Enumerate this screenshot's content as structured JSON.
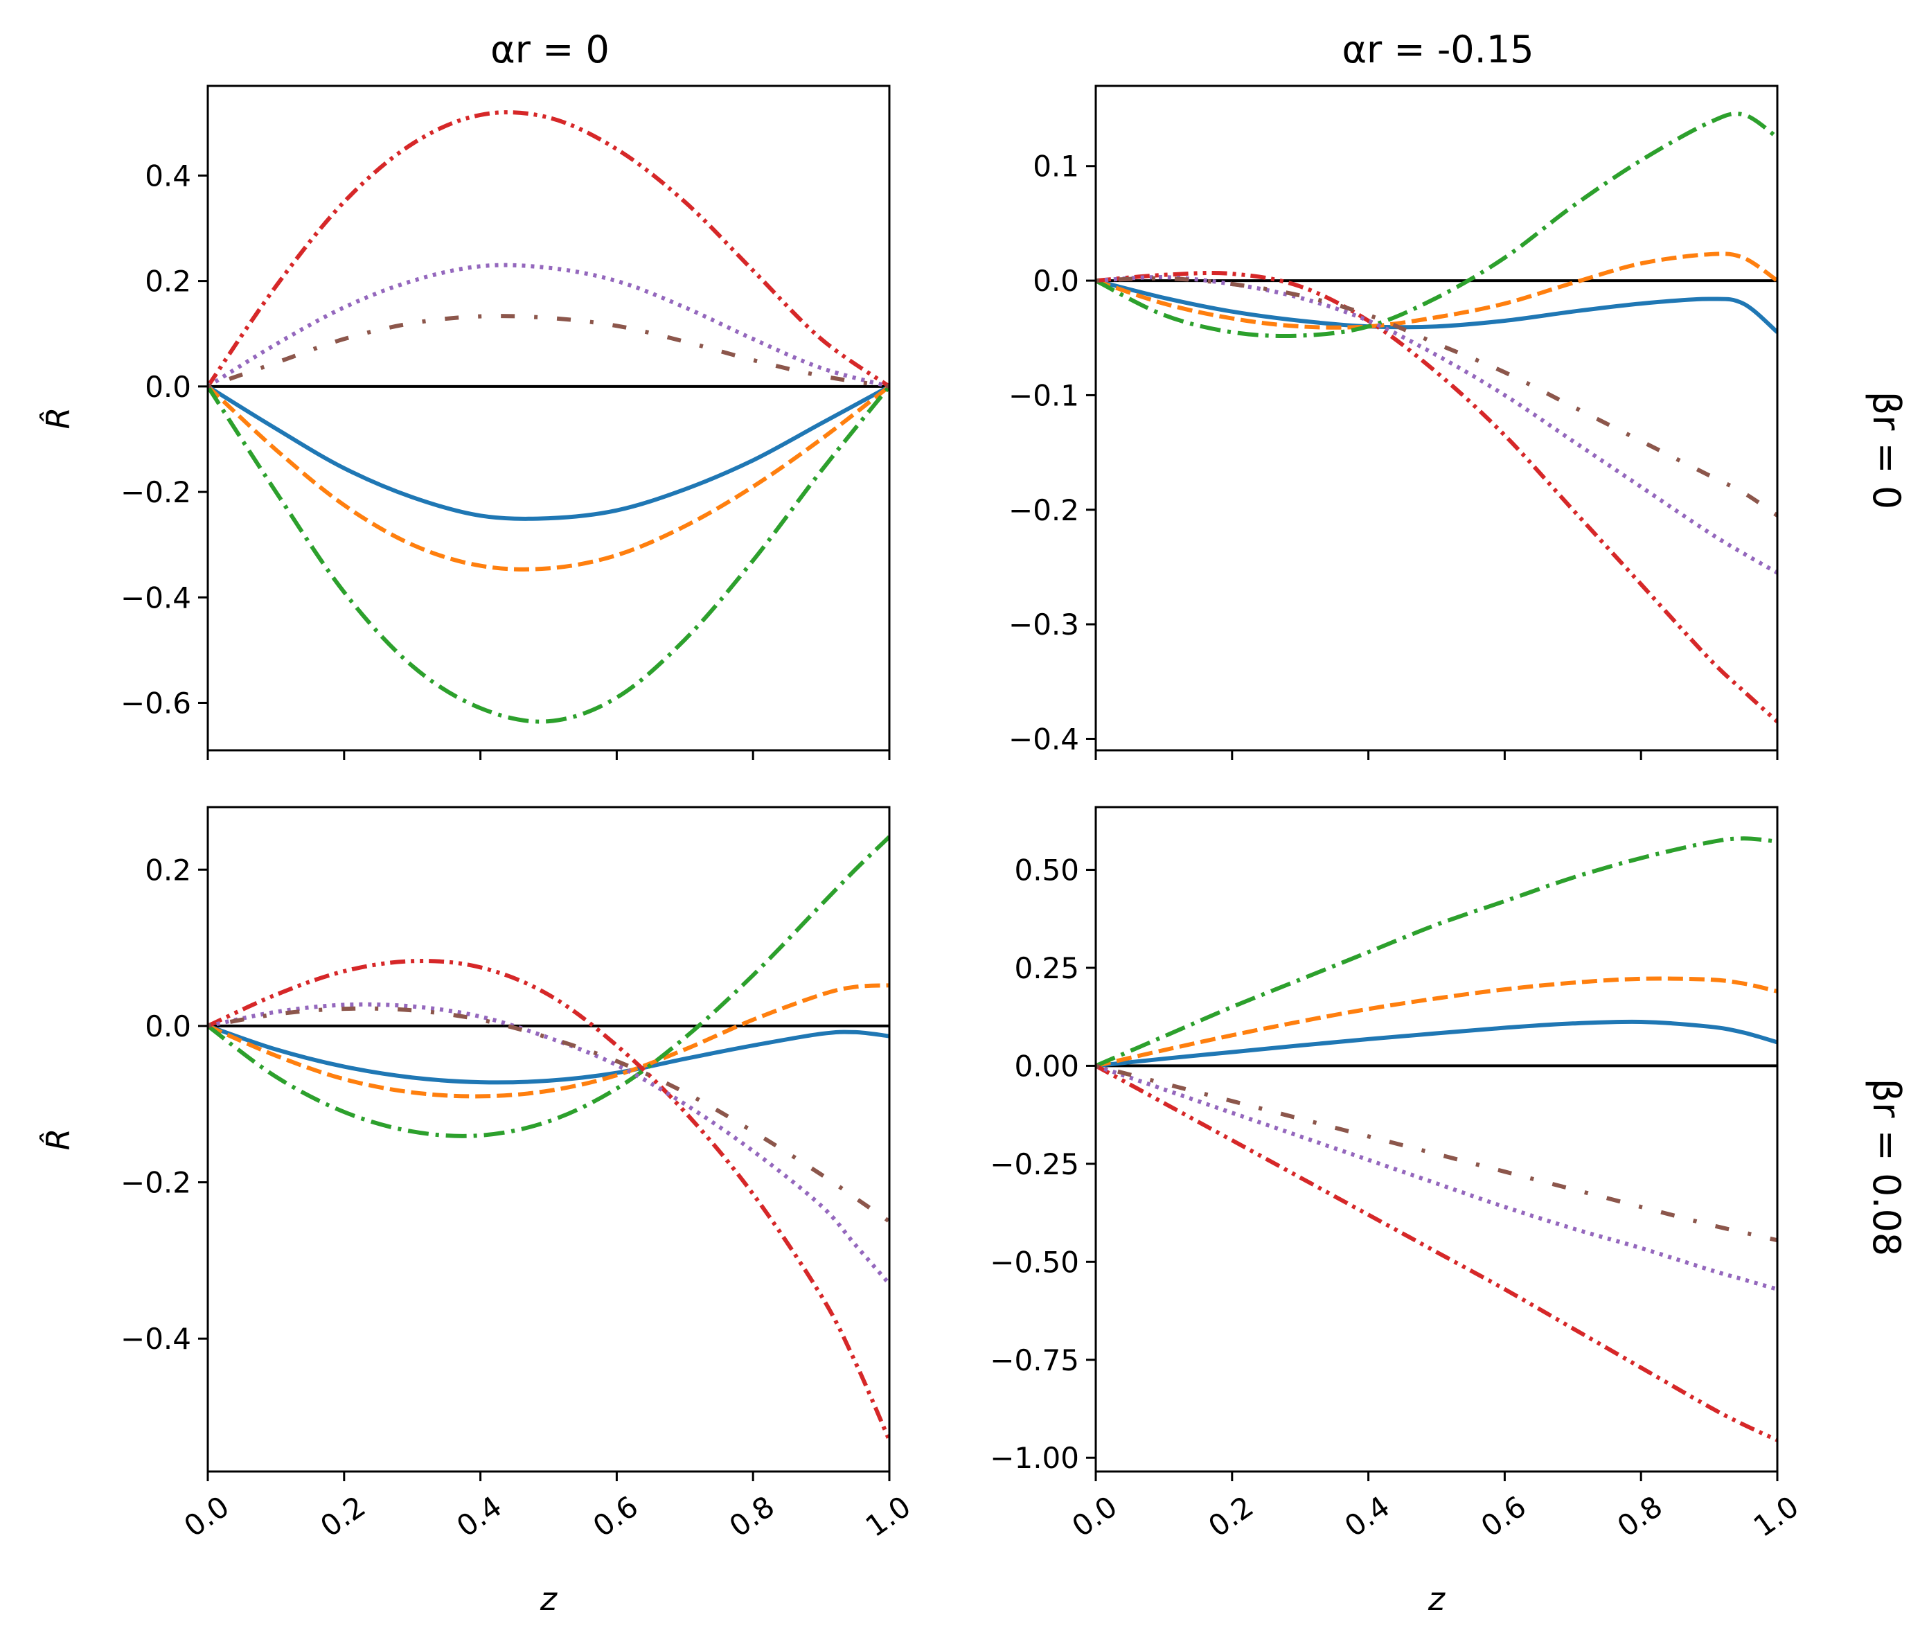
{
  "colors": {
    "series": [
      "#1f77b4",
      "#ff7f0e",
      "#2ca02c",
      "#d62728",
      "#9467bd",
      "#8c564b"
    ],
    "zero_line": "#000000",
    "frame": "#000000",
    "background": "#ffffff"
  },
  "figure": {
    "column_titles": [
      "αr = 0",
      "αr = -0.15"
    ],
    "row_labels": [
      "βr = 0",
      "βr = 0.08"
    ],
    "xlabel": "z",
    "ylabel": "R̂"
  },
  "chart_data": [
    {
      "type": "line",
      "title": "αr = 0",
      "row_label": "",
      "xlabel": "",
      "ylabel": "R̂",
      "xlim": [
        0,
        1
      ],
      "ylim": [
        -0.69,
        0.57
      ],
      "x_ticks": [
        0,
        0.2,
        0.4,
        0.6,
        0.8,
        1.0
      ],
      "x_tick_labels": [],
      "y_ticks": [
        -0.6,
        -0.4,
        -0.2,
        0.0,
        0.2,
        0.4
      ],
      "y_tick_labels": [
        "−0.6",
        "−0.4",
        "−0.2",
        "0.0",
        "0.2",
        "0.4"
      ],
      "grid": false,
      "zero_line": true,
      "x": [
        0,
        0.1,
        0.2,
        0.3,
        0.4,
        0.5,
        0.6,
        0.7,
        0.8,
        0.9,
        1.0
      ],
      "series": [
        {
          "style": "solid",
          "values": [
            0,
            -0.08,
            -0.155,
            -0.21,
            -0.245,
            -0.25,
            -0.235,
            -0.195,
            -0.14,
            -0.07,
            0
          ]
        },
        {
          "style": "dashed",
          "values": [
            0,
            -0.12,
            -0.225,
            -0.3,
            -0.34,
            -0.345,
            -0.32,
            -0.265,
            -0.19,
            -0.1,
            0
          ]
        },
        {
          "style": "dashdot",
          "values": [
            0,
            -0.2,
            -0.39,
            -0.53,
            -0.61,
            -0.635,
            -0.59,
            -0.48,
            -0.33,
            -0.16,
            0
          ]
        },
        {
          "style": "dashdotdot",
          "values": [
            0,
            0.19,
            0.35,
            0.46,
            0.515,
            0.51,
            0.45,
            0.35,
            0.22,
            0.09,
            0
          ]
        },
        {
          "style": "dotted",
          "values": [
            0,
            0.08,
            0.15,
            0.2,
            0.228,
            0.225,
            0.2,
            0.15,
            0.09,
            0.035,
            0
          ]
        },
        {
          "style": "loosedashdot",
          "values": [
            0,
            0.045,
            0.09,
            0.12,
            0.133,
            0.13,
            0.115,
            0.085,
            0.05,
            0.02,
            0
          ]
        }
      ]
    },
    {
      "type": "line",
      "title": "αr = -0.15",
      "row_label": "βr = 0",
      "xlabel": "",
      "ylabel": "",
      "xlim": [
        0,
        1
      ],
      "ylim": [
        -0.41,
        0.17
      ],
      "x_ticks": [
        0,
        0.2,
        0.4,
        0.6,
        0.8,
        1.0
      ],
      "x_tick_labels": [],
      "y_ticks": [
        -0.4,
        -0.3,
        -0.2,
        -0.1,
        0.0,
        0.1
      ],
      "y_tick_labels": [
        "−0.4",
        "−0.3",
        "−0.2",
        "−0.1",
        "0.0",
        "0.1"
      ],
      "grid": false,
      "zero_line": true,
      "x": [
        0,
        0.1,
        0.2,
        0.3,
        0.4,
        0.5,
        0.6,
        0.7,
        0.8,
        0.9,
        0.95,
        1.0
      ],
      "series": [
        {
          "style": "solid",
          "values": [
            0,
            -0.015,
            -0.027,
            -0.035,
            -0.04,
            -0.04,
            -0.035,
            -0.027,
            -0.02,
            -0.016,
            -0.02,
            -0.045
          ]
        },
        {
          "style": "dashed",
          "values": [
            0,
            -0.02,
            -0.033,
            -0.04,
            -0.04,
            -0.032,
            -0.02,
            -0.002,
            0.015,
            0.023,
            0.02,
            0
          ]
        },
        {
          "style": "dashdot",
          "values": [
            0,
            -0.03,
            -0.045,
            -0.048,
            -0.04,
            -0.015,
            0.02,
            0.065,
            0.105,
            0.138,
            0.145,
            0.125
          ]
        },
        {
          "style": "dashdotdot",
          "values": [
            0,
            0.005,
            0.006,
            -0.005,
            -0.035,
            -0.08,
            -0.135,
            -0.2,
            -0.265,
            -0.33,
            -0.358,
            -0.385
          ]
        },
        {
          "style": "dotted",
          "values": [
            0,
            0.003,
            -0.003,
            -0.015,
            -0.035,
            -0.065,
            -0.1,
            -0.14,
            -0.18,
            -0.22,
            -0.238,
            -0.255
          ]
        },
        {
          "style": "loosedashdot",
          "values": [
            0,
            0.002,
            -0.003,
            -0.013,
            -0.03,
            -0.055,
            -0.08,
            -0.11,
            -0.14,
            -0.17,
            -0.185,
            -0.205
          ]
        }
      ]
    },
    {
      "type": "line",
      "title": "",
      "row_label": "",
      "xlabel": "z",
      "ylabel": "R̂",
      "xlim": [
        0,
        1
      ],
      "ylim": [
        -0.57,
        0.28
      ],
      "x_ticks": [
        0,
        0.2,
        0.4,
        0.6,
        0.8,
        1.0
      ],
      "x_tick_labels": [
        "0.0",
        "0.2",
        "0.4",
        "0.6",
        "0.8",
        "1.0"
      ],
      "y_ticks": [
        -0.4,
        -0.2,
        0.0,
        0.2
      ],
      "y_tick_labels": [
        "−0.4",
        "−0.2",
        "0.0",
        "0.2"
      ],
      "grid": false,
      "zero_line": true,
      "x": [
        0,
        0.1,
        0.2,
        0.3,
        0.4,
        0.5,
        0.6,
        0.7,
        0.8,
        0.9,
        0.95,
        1.0
      ],
      "series": [
        {
          "style": "solid",
          "values": [
            0,
            -0.03,
            -0.052,
            -0.066,
            -0.072,
            -0.07,
            -0.06,
            -0.042,
            -0.025,
            -0.01,
            -0.008,
            -0.013
          ]
        },
        {
          "style": "dashed",
          "values": [
            0,
            -0.038,
            -0.068,
            -0.085,
            -0.09,
            -0.083,
            -0.063,
            -0.03,
            0.008,
            0.04,
            0.05,
            0.052
          ]
        },
        {
          "style": "dashdot",
          "values": [
            0,
            -0.065,
            -0.11,
            -0.135,
            -0.14,
            -0.122,
            -0.08,
            -0.015,
            0.065,
            0.155,
            0.2,
            0.242
          ]
        },
        {
          "style": "dashdotdot",
          "values": [
            0,
            0.04,
            0.07,
            0.083,
            0.075,
            0.04,
            -0.025,
            -0.11,
            -0.215,
            -0.345,
            -0.43,
            -0.53
          ]
        },
        {
          "style": "dotted",
          "values": [
            0,
            0.018,
            0.027,
            0.025,
            0.012,
            -0.015,
            -0.05,
            -0.1,
            -0.16,
            -0.23,
            -0.28,
            -0.33
          ]
        },
        {
          "style": "loosedashdot",
          "values": [
            0,
            0.015,
            0.022,
            0.02,
            0.008,
            -0.015,
            -0.045,
            -0.085,
            -0.135,
            -0.19,
            -0.22,
            -0.25
          ]
        }
      ]
    },
    {
      "type": "line",
      "title": "",
      "row_label": "βr = 0.08",
      "xlabel": "z",
      "ylabel": "",
      "xlim": [
        0,
        1
      ],
      "ylim": [
        -1.035,
        0.66
      ],
      "x_ticks": [
        0,
        0.2,
        0.4,
        0.6,
        0.8,
        1.0
      ],
      "x_tick_labels": [
        "0.0",
        "0.2",
        "0.4",
        "0.6",
        "0.8",
        "1.0"
      ],
      "y_ticks": [
        -1.0,
        -0.75,
        -0.5,
        -0.25,
        0.0,
        0.25,
        0.5
      ],
      "y_tick_labels": [
        "−1.00",
        "−0.75",
        "−0.50",
        "−0.25",
        "0.00",
        "0.25",
        "0.50"
      ],
      "grid": false,
      "zero_line": true,
      "x": [
        0,
        0.1,
        0.2,
        0.3,
        0.4,
        0.5,
        0.6,
        0.7,
        0.8,
        0.9,
        0.95,
        1.0
      ],
      "series": [
        {
          "style": "solid",
          "values": [
            0,
            0.018,
            0.035,
            0.052,
            0.068,
            0.083,
            0.097,
            0.108,
            0.112,
            0.1,
            0.085,
            0.06
          ]
        },
        {
          "style": "dashed",
          "values": [
            0,
            0.04,
            0.078,
            0.113,
            0.145,
            0.172,
            0.195,
            0.212,
            0.222,
            0.22,
            0.21,
            0.19
          ]
        },
        {
          "style": "dashdot",
          "values": [
            0,
            0.075,
            0.15,
            0.22,
            0.29,
            0.36,
            0.42,
            0.48,
            0.53,
            0.57,
            0.58,
            0.572
          ]
        },
        {
          "style": "dashdotdot",
          "values": [
            0,
            -0.095,
            -0.19,
            -0.285,
            -0.38,
            -0.475,
            -0.57,
            -0.67,
            -0.77,
            -0.87,
            -0.915,
            -0.955
          ]
        },
        {
          "style": "dotted",
          "values": [
            0,
            -0.06,
            -0.12,
            -0.18,
            -0.24,
            -0.3,
            -0.36,
            -0.415,
            -0.465,
            -0.52,
            -0.545,
            -0.57
          ]
        },
        {
          "style": "loosedashdot",
          "values": [
            0,
            -0.045,
            -0.09,
            -0.135,
            -0.18,
            -0.225,
            -0.27,
            -0.315,
            -0.36,
            -0.405,
            -0.425,
            -0.445
          ]
        }
      ]
    }
  ]
}
